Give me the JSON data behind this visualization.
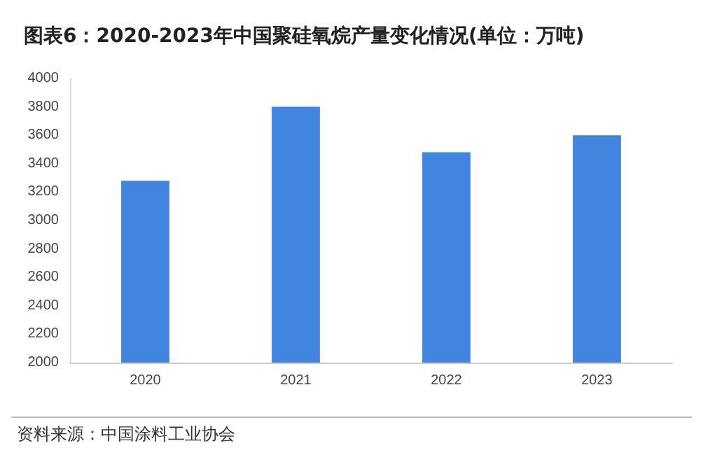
{
  "chart_data": {
    "type": "bar",
    "title": "图表6：2020-2023年中国聚硅氧烷产量变化情况(单位：万吨)",
    "categories": [
      "2020",
      "2021",
      "2022",
      "2023"
    ],
    "values": [
      3280,
      3800,
      3480,
      3600
    ],
    "color": "#4285e0",
    "ylim": [
      2000,
      4000
    ],
    "yticks": [
      2000,
      2200,
      2400,
      2600,
      2800,
      3000,
      3200,
      3400,
      3600,
      3800,
      4000
    ],
    "grid": false,
    "annotations": [
      "资料来源：中国涂料工业协会"
    ]
  }
}
